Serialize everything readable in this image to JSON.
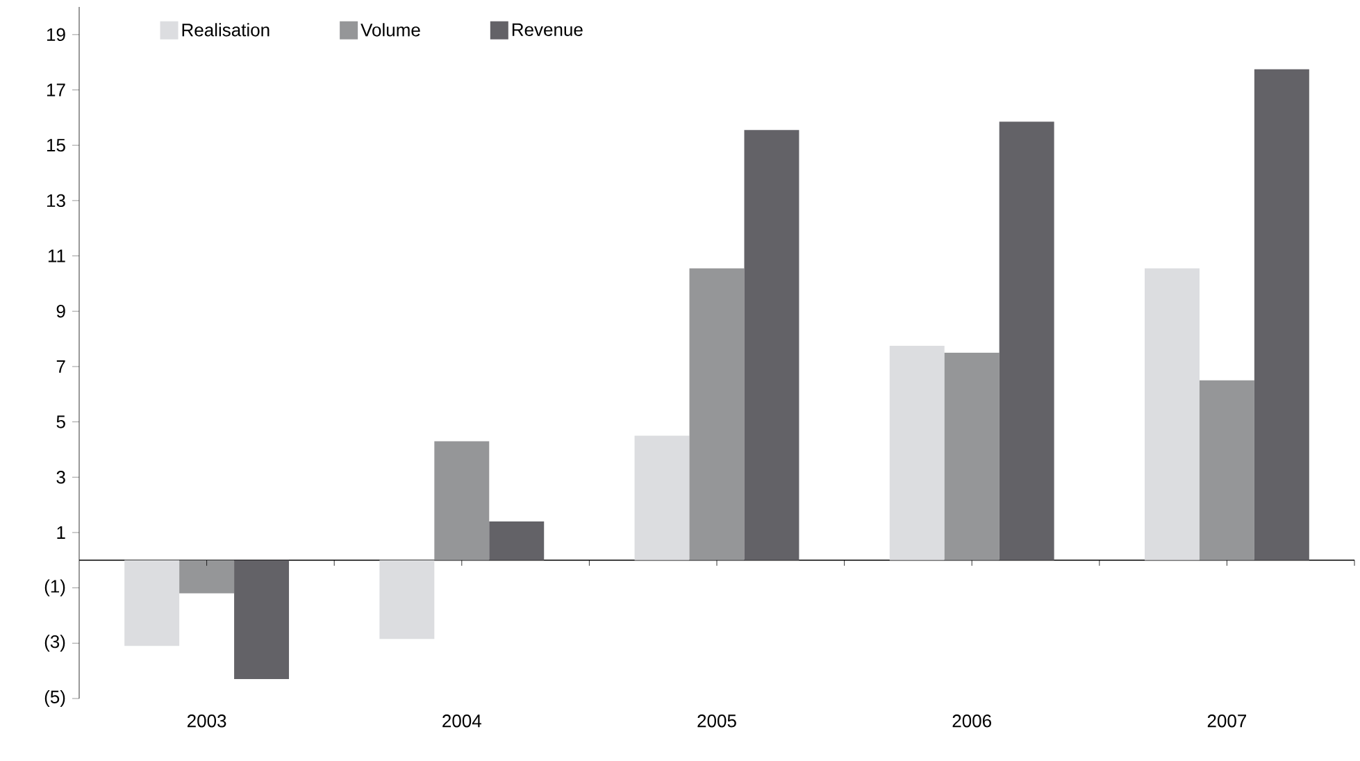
{
  "chart_data": {
    "type": "bar",
    "categories": [
      "2003",
      "2004",
      "2005",
      "2006",
      "2007"
    ],
    "series": [
      {
        "name": "Realisation",
        "color": "#dcdde0",
        "values": [
          -3.1,
          -2.85,
          4.5,
          7.75,
          10.55
        ]
      },
      {
        "name": "Volume",
        "color": "#959698",
        "values": [
          -1.2,
          4.3,
          10.55,
          7.5,
          6.5
        ]
      },
      {
        "name": "Revenue",
        "color": "#636267",
        "values": [
          -4.3,
          1.4,
          15.55,
          15.85,
          17.75
        ]
      }
    ],
    "ylim": [
      -5,
      20
    ],
    "yticks": [
      {
        "value": -5,
        "label": "(5)"
      },
      {
        "value": -3,
        "label": "(3)"
      },
      {
        "value": -1,
        "label": "(1)"
      },
      1,
      3,
      5,
      7,
      9,
      11,
      13,
      15,
      17,
      19
    ],
    "legend": "top left",
    "grid": false
  }
}
